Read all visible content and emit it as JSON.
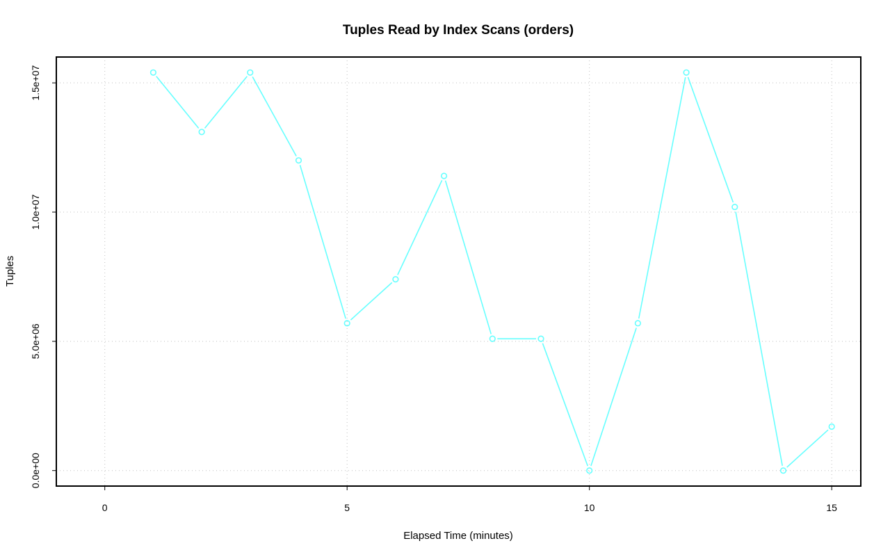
{
  "chart_data": {
    "type": "line",
    "title": "Tuples Read by Index Scans (orders)",
    "xlabel": "Elapsed Time (minutes)",
    "ylabel": "Tuples",
    "xlim": [
      -1,
      15.6
    ],
    "ylim": [
      -600000,
      16000000
    ],
    "x_ticks": [
      0,
      5,
      10,
      15
    ],
    "x_tick_labels": [
      "0",
      "5",
      "10",
      "15"
    ],
    "y_ticks": [
      0,
      5000000,
      10000000,
      15000000
    ],
    "y_tick_labels": [
      "0.0e+00",
      "5.0e+06",
      "1.0e+07",
      "1.5e+07"
    ],
    "grid": true,
    "color": "#66ffff",
    "series": [
      {
        "x": [
          1,
          2,
          3,
          4,
          5,
          6,
          7,
          8,
          9,
          10,
          11,
          12,
          13,
          14,
          15
        ],
        "values": [
          15400000,
          13100000,
          15400000,
          12000000,
          5700000,
          7400000,
          11400000,
          5100000,
          5100000,
          0,
          5700000,
          15400000,
          10200000,
          0,
          1700000
        ]
      }
    ]
  }
}
